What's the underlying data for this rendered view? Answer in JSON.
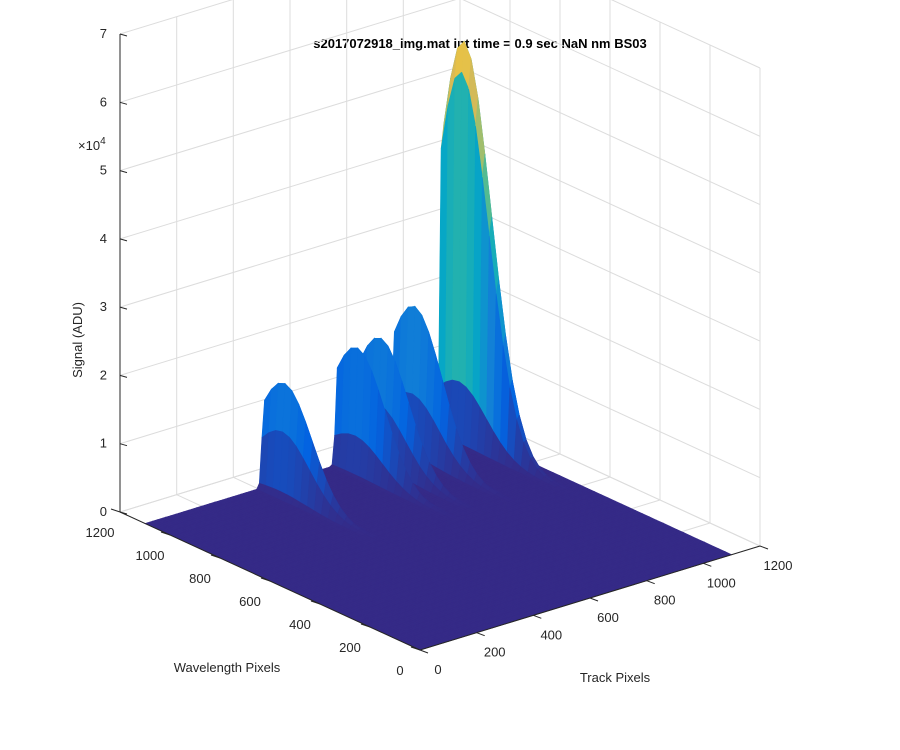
{
  "chart_data": {
    "type": "surface",
    "title": "s2017072918_img.mat int time = 0.9 sec  NaN nm BS03",
    "xlabel": "Track Pixels",
    "ylabel": "Wavelength Pixels",
    "zlabel": "Signal (ADU)",
    "xlim": [
      0,
      1200
    ],
    "ylim": [
      0,
      1200
    ],
    "zlim": [
      0,
      70000
    ],
    "xticks": [
      "0",
      "200",
      "400",
      "600",
      "800",
      "1000",
      "1200"
    ],
    "yticks": [
      "0",
      "200",
      "400",
      "600",
      "800",
      "1000",
      "1200"
    ],
    "zticks": [
      "0",
      "1",
      "2",
      "3",
      "4",
      "5",
      "6",
      "7"
    ],
    "z_exponent_label": "×10",
    "z_exponent": "4",
    "grid": true,
    "colormap": [
      "#352a87",
      "#0363e1",
      "#1485d4",
      "#06a7c6",
      "#38b99e",
      "#92bf73",
      "#d9ba56",
      "#fcce2e",
      "#f9fb0e"
    ],
    "x_range_data": [
      0,
      1100
    ],
    "y_range_data": [
      0,
      1100
    ],
    "peaks": [
      {
        "track": 1050,
        "wavelength_center": 1020,
        "wavelength_width": 110,
        "amplitude": 70000
      },
      {
        "track": 880,
        "wavelength_center": 1020,
        "wavelength_width": 110,
        "amplitude": 22000
      },
      {
        "track": 760,
        "wavelength_center": 1020,
        "wavelength_width": 110,
        "amplitude": 19000
      },
      {
        "track": 680,
        "wavelength_center": 1020,
        "wavelength_width": 110,
        "amplitude": 19000
      },
      {
        "track": 420,
        "wavelength_center": 1020,
        "wavelength_width": 110,
        "amplitude": 17000
      }
    ]
  }
}
